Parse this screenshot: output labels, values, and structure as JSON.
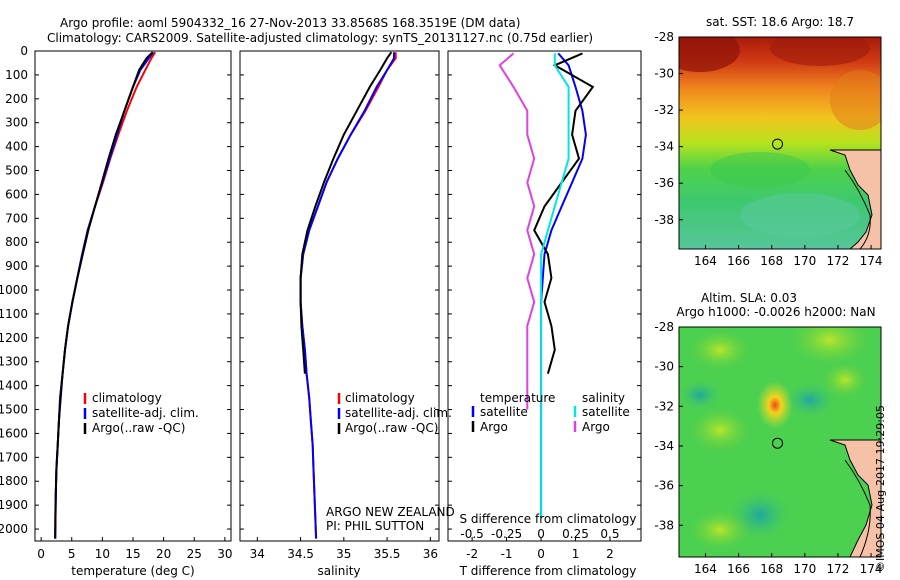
{
  "header": {
    "line1": "Argo profile: aoml 5904332_16 27-Nov-2013 33.8568S 168.3519E (DM data)",
    "line2": "Climatology: CARS2009. Satellite-adjusted climatology: synTS_20131127.nc (0.75d earlier)"
  },
  "colors": {
    "climatology": "#ff0000",
    "satellite": "#0000ff",
    "argo": "#000000",
    "s_satellite": "#00e5e5",
    "s_argo": "#e040e0"
  },
  "chart_data": [
    {
      "type": "line",
      "panel": "temperature",
      "xlabel": "temperature (deg C)",
      "ylabel": "",
      "xlim": [
        -1,
        31
      ],
      "ylim": [
        2050,
        0
      ],
      "xticks": [
        0,
        5,
        10,
        15,
        20,
        25,
        30
      ],
      "yticks": [
        0,
        100,
        200,
        300,
        400,
        500,
        600,
        700,
        800,
        900,
        1000,
        1100,
        1200,
        1300,
        1400,
        1500,
        1600,
        1700,
        1800,
        1900,
        2000
      ],
      "legend": [
        "climatology",
        "satellite-adj. clim.",
        "Argo(..raw -QC)"
      ],
      "legend_position": "lower-right",
      "series": [
        {
          "name": "climatology",
          "color": "#ff0000",
          "x": [
            18.6,
            18.0,
            17.0,
            15.6,
            14.0,
            12.6,
            11.3,
            10.1,
            8.8,
            7.6,
            6.7,
            5.9,
            5.1,
            4.4,
            3.9,
            3.5,
            3.1,
            2.9,
            2.7,
            2.5,
            2.4,
            2.3,
            2.3
          ],
          "y": [
            5,
            30,
            80,
            150,
            250,
            350,
            450,
            550,
            650,
            750,
            850,
            950,
            1050,
            1150,
            1250,
            1350,
            1450,
            1550,
            1650,
            1750,
            1850,
            1950,
            2040
          ]
        },
        {
          "name": "satellite-adj. clim.",
          "color": "#0000ff",
          "x": [
            18.3,
            17.6,
            16.2,
            15.0,
            13.6,
            12.4,
            11.2,
            10.0,
            8.8,
            7.6,
            6.7,
            5.9,
            5.1,
            4.4,
            3.9,
            3.5,
            3.1,
            2.9,
            2.7,
            2.5,
            2.4,
            2.35,
            2.3
          ],
          "y": [
            5,
            30,
            80,
            150,
            250,
            350,
            450,
            550,
            650,
            750,
            850,
            950,
            1050,
            1150,
            1250,
            1350,
            1450,
            1550,
            1650,
            1750,
            1850,
            1950,
            2040
          ]
        },
        {
          "name": "Argo(..raw -QC)",
          "color": "#000000",
          "x": [
            18.2,
            17.2,
            16.0,
            15.0,
            13.6,
            12.2,
            11.0,
            9.9,
            8.8,
            7.7,
            6.8,
            5.9,
            5.1,
            4.4,
            3.9,
            3.5,
            3.2,
            2.9,
            2.7,
            2.5,
            2.4,
            2.35,
            2.3
          ],
          "y": [
            5,
            30,
            80,
            150,
            250,
            350,
            450,
            550,
            650,
            750,
            850,
            950,
            1050,
            1150,
            1250,
            1350,
            1450,
            1550,
            1650,
            1750,
            1850,
            1950,
            2040
          ]
        }
      ]
    },
    {
      "type": "line",
      "panel": "salinity",
      "xlabel": "salinity",
      "ylabel": "",
      "xlim": [
        33.8,
        36.1
      ],
      "ylim": [
        2050,
        0
      ],
      "xticks": [
        34,
        34.5,
        35,
        35.5,
        36
      ],
      "legend": [
        "climatology",
        "satellite-adj. clim.",
        "Argo(..raw -QC)"
      ],
      "legend_position": "lower-right",
      "annotation_lines": [
        "ARGO NEW ZEALAND",
        "PI: PHIL SUTTON"
      ],
      "series": [
        {
          "name": "climatology",
          "color": "#ff0000",
          "x": [
            35.6,
            35.6,
            35.5,
            35.4,
            35.25,
            35.08,
            34.93,
            34.8,
            34.7,
            34.6,
            34.53,
            34.5,
            34.5,
            34.52,
            34.55,
            34.57,
            34.6,
            34.62,
            34.64,
            34.65,
            34.66,
            34.67,
            34.68
          ],
          "y": [
            5,
            30,
            80,
            150,
            250,
            350,
            450,
            550,
            650,
            750,
            850,
            950,
            1050,
            1150,
            1250,
            1350,
            1450,
            1550,
            1650,
            1750,
            1850,
            1950,
            2040
          ]
        },
        {
          "name": "satellite-adj. clim.",
          "color": "#0000ff",
          "x": [
            35.58,
            35.58,
            35.5,
            35.38,
            35.24,
            35.08,
            34.93,
            34.8,
            34.7,
            34.6,
            34.53,
            34.5,
            34.5,
            34.52,
            34.55,
            34.57,
            34.6,
            34.62,
            34.64,
            34.65,
            34.66,
            34.67,
            34.68
          ],
          "y": [
            5,
            30,
            80,
            150,
            250,
            350,
            450,
            550,
            650,
            750,
            850,
            950,
            1050,
            1150,
            1250,
            1350,
            1450,
            1550,
            1650,
            1750,
            1850,
            1950,
            2040
          ]
        },
        {
          "name": "Argo(..raw -QC)",
          "color": "#000000",
          "x": [
            35.55,
            35.5,
            35.42,
            35.3,
            35.15,
            35.0,
            34.88,
            34.77,
            34.67,
            34.58,
            34.52,
            34.5,
            34.5,
            34.51,
            34.53,
            34.55
          ],
          "y": [
            5,
            30,
            80,
            150,
            250,
            350,
            450,
            550,
            650,
            750,
            850,
            950,
            1050,
            1150,
            1250,
            1350
          ]
        }
      ]
    },
    {
      "type": "line",
      "panel": "difference",
      "xlabel": "T difference from climatology",
      "x2label": "S difference from climatology",
      "ylabel": "",
      "xlim": [
        -2.7,
        2.9
      ],
      "ylim": [
        2050,
        0
      ],
      "xticks": [
        -2,
        -1,
        0,
        1,
        2
      ],
      "x2ticks": [
        "-0.5",
        "-0.25",
        "0",
        "0.25",
        "0.5"
      ],
      "legend_title_left": "temperature",
      "legend_title_right": "salinity",
      "legend": [
        "satellite",
        "Argo",
        "satellite",
        "Argo"
      ],
      "series": [
        {
          "name": "satellite",
          "group": "temperature",
          "color": "#0000ff",
          "x": [
            0.5,
            0.8,
            1.0,
            1.2,
            1.3,
            1.2,
            0.9,
            0.6,
            0.3,
            0.1,
            0.05,
            0.0,
            0.0,
            0.0,
            0.0,
            0.0,
            0.0,
            0.0,
            0.0,
            0.0,
            0.0
          ],
          "y": [
            10,
            60,
            150,
            250,
            350,
            450,
            550,
            650,
            750,
            850,
            950,
            1050,
            1150,
            1250,
            1350,
            1450,
            1550,
            1650,
            1750,
            1850,
            1950
          ]
        },
        {
          "name": "Argo",
          "group": "temperature",
          "color": "#000000",
          "x": [
            1.2,
            0.4,
            1.5,
            1.0,
            0.9,
            1.1,
            0.6,
            0.1,
            -0.2,
            0.2,
            0.3,
            0.1,
            0.3,
            0.4,
            0.2
          ],
          "y": [
            10,
            60,
            150,
            250,
            350,
            450,
            550,
            650,
            750,
            850,
            950,
            1050,
            1150,
            1250,
            1350
          ]
        },
        {
          "name": "satellite",
          "group": "salinity",
          "color": "#00e5e5",
          "x": [
            0.1,
            0.1,
            0.2,
            0.2,
            0.2,
            0.2,
            0.15,
            0.1,
            0.05,
            0.0,
            0.0,
            0.0,
            0.0,
            0.0,
            0.0,
            0.0,
            0.0,
            0.0,
            0.0,
            0.0,
            0.0
          ],
          "y": [
            10,
            60,
            150,
            250,
            350,
            450,
            550,
            650,
            750,
            850,
            950,
            1050,
            1150,
            1250,
            1350,
            1450,
            1550,
            1650,
            1750,
            1850,
            1950
          ]
        },
        {
          "name": "Argo",
          "group": "salinity",
          "color": "#e040e0",
          "x": [
            -0.2,
            -0.3,
            -0.2,
            -0.1,
            -0.1,
            -0.05,
            -0.1,
            -0.05,
            -0.1,
            -0.05,
            -0.1,
            -0.05,
            -0.1,
            -0.1,
            -0.1,
            -0.1
          ],
          "y": [
            10,
            60,
            150,
            250,
            350,
            450,
            550,
            650,
            750,
            850,
            950,
            1050,
            1150,
            1250,
            1350,
            1500
          ]
        }
      ]
    },
    {
      "type": "heatmap",
      "panel": "sst-map",
      "title": "sat. SST: 18.6 Argo: 18.7",
      "xlim": [
        162.4,
        174.6
      ],
      "ylim": [
        -39.6,
        -28
      ],
      "xticks": [
        164,
        166,
        168,
        170,
        172,
        174
      ],
      "yticks": [
        -28,
        -30,
        -32,
        -34,
        -36,
        -38
      ],
      "marker": {
        "lon": 168.35,
        "lat": -33.86
      }
    },
    {
      "type": "heatmap",
      "panel": "sla-map",
      "title_line1": "Altim. SLA: 0.03",
      "title_line2": "Argo h1000: -0.0026 h2000: NaN",
      "xlim": [
        162.4,
        174.6
      ],
      "ylim": [
        -39.6,
        -28
      ],
      "xticks": [
        164,
        166,
        168,
        170,
        172,
        174
      ],
      "yticks": [
        -28,
        -30,
        -32,
        -34,
        -36,
        -38
      ],
      "marker": {
        "lon": 168.35,
        "lat": -33.86
      }
    }
  ],
  "stamp": "©IMOS 04-Aug-2017 19:29:05"
}
